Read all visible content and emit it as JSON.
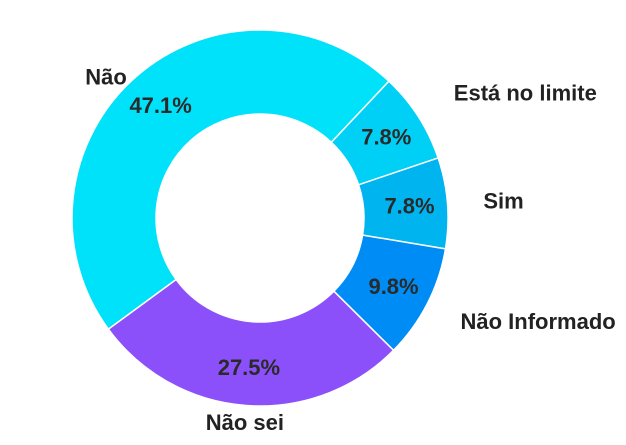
{
  "chart_data": {
    "type": "pie",
    "donut": true,
    "categories": [
      "Não",
      "Está no limite",
      "Sim",
      "Não Informado",
      "Não sei"
    ],
    "values": [
      47.1,
      7.8,
      7.8,
      9.8,
      27.5
    ],
    "value_labels": [
      "47.1%",
      "7.8%",
      "7.8%",
      "9.8%",
      "27.5%"
    ],
    "colors": [
      "#00e1fa",
      "#00d0f5",
      "#00b4f0",
      "#008cf5",
      "#8c50fa"
    ],
    "legend": "none"
  }
}
